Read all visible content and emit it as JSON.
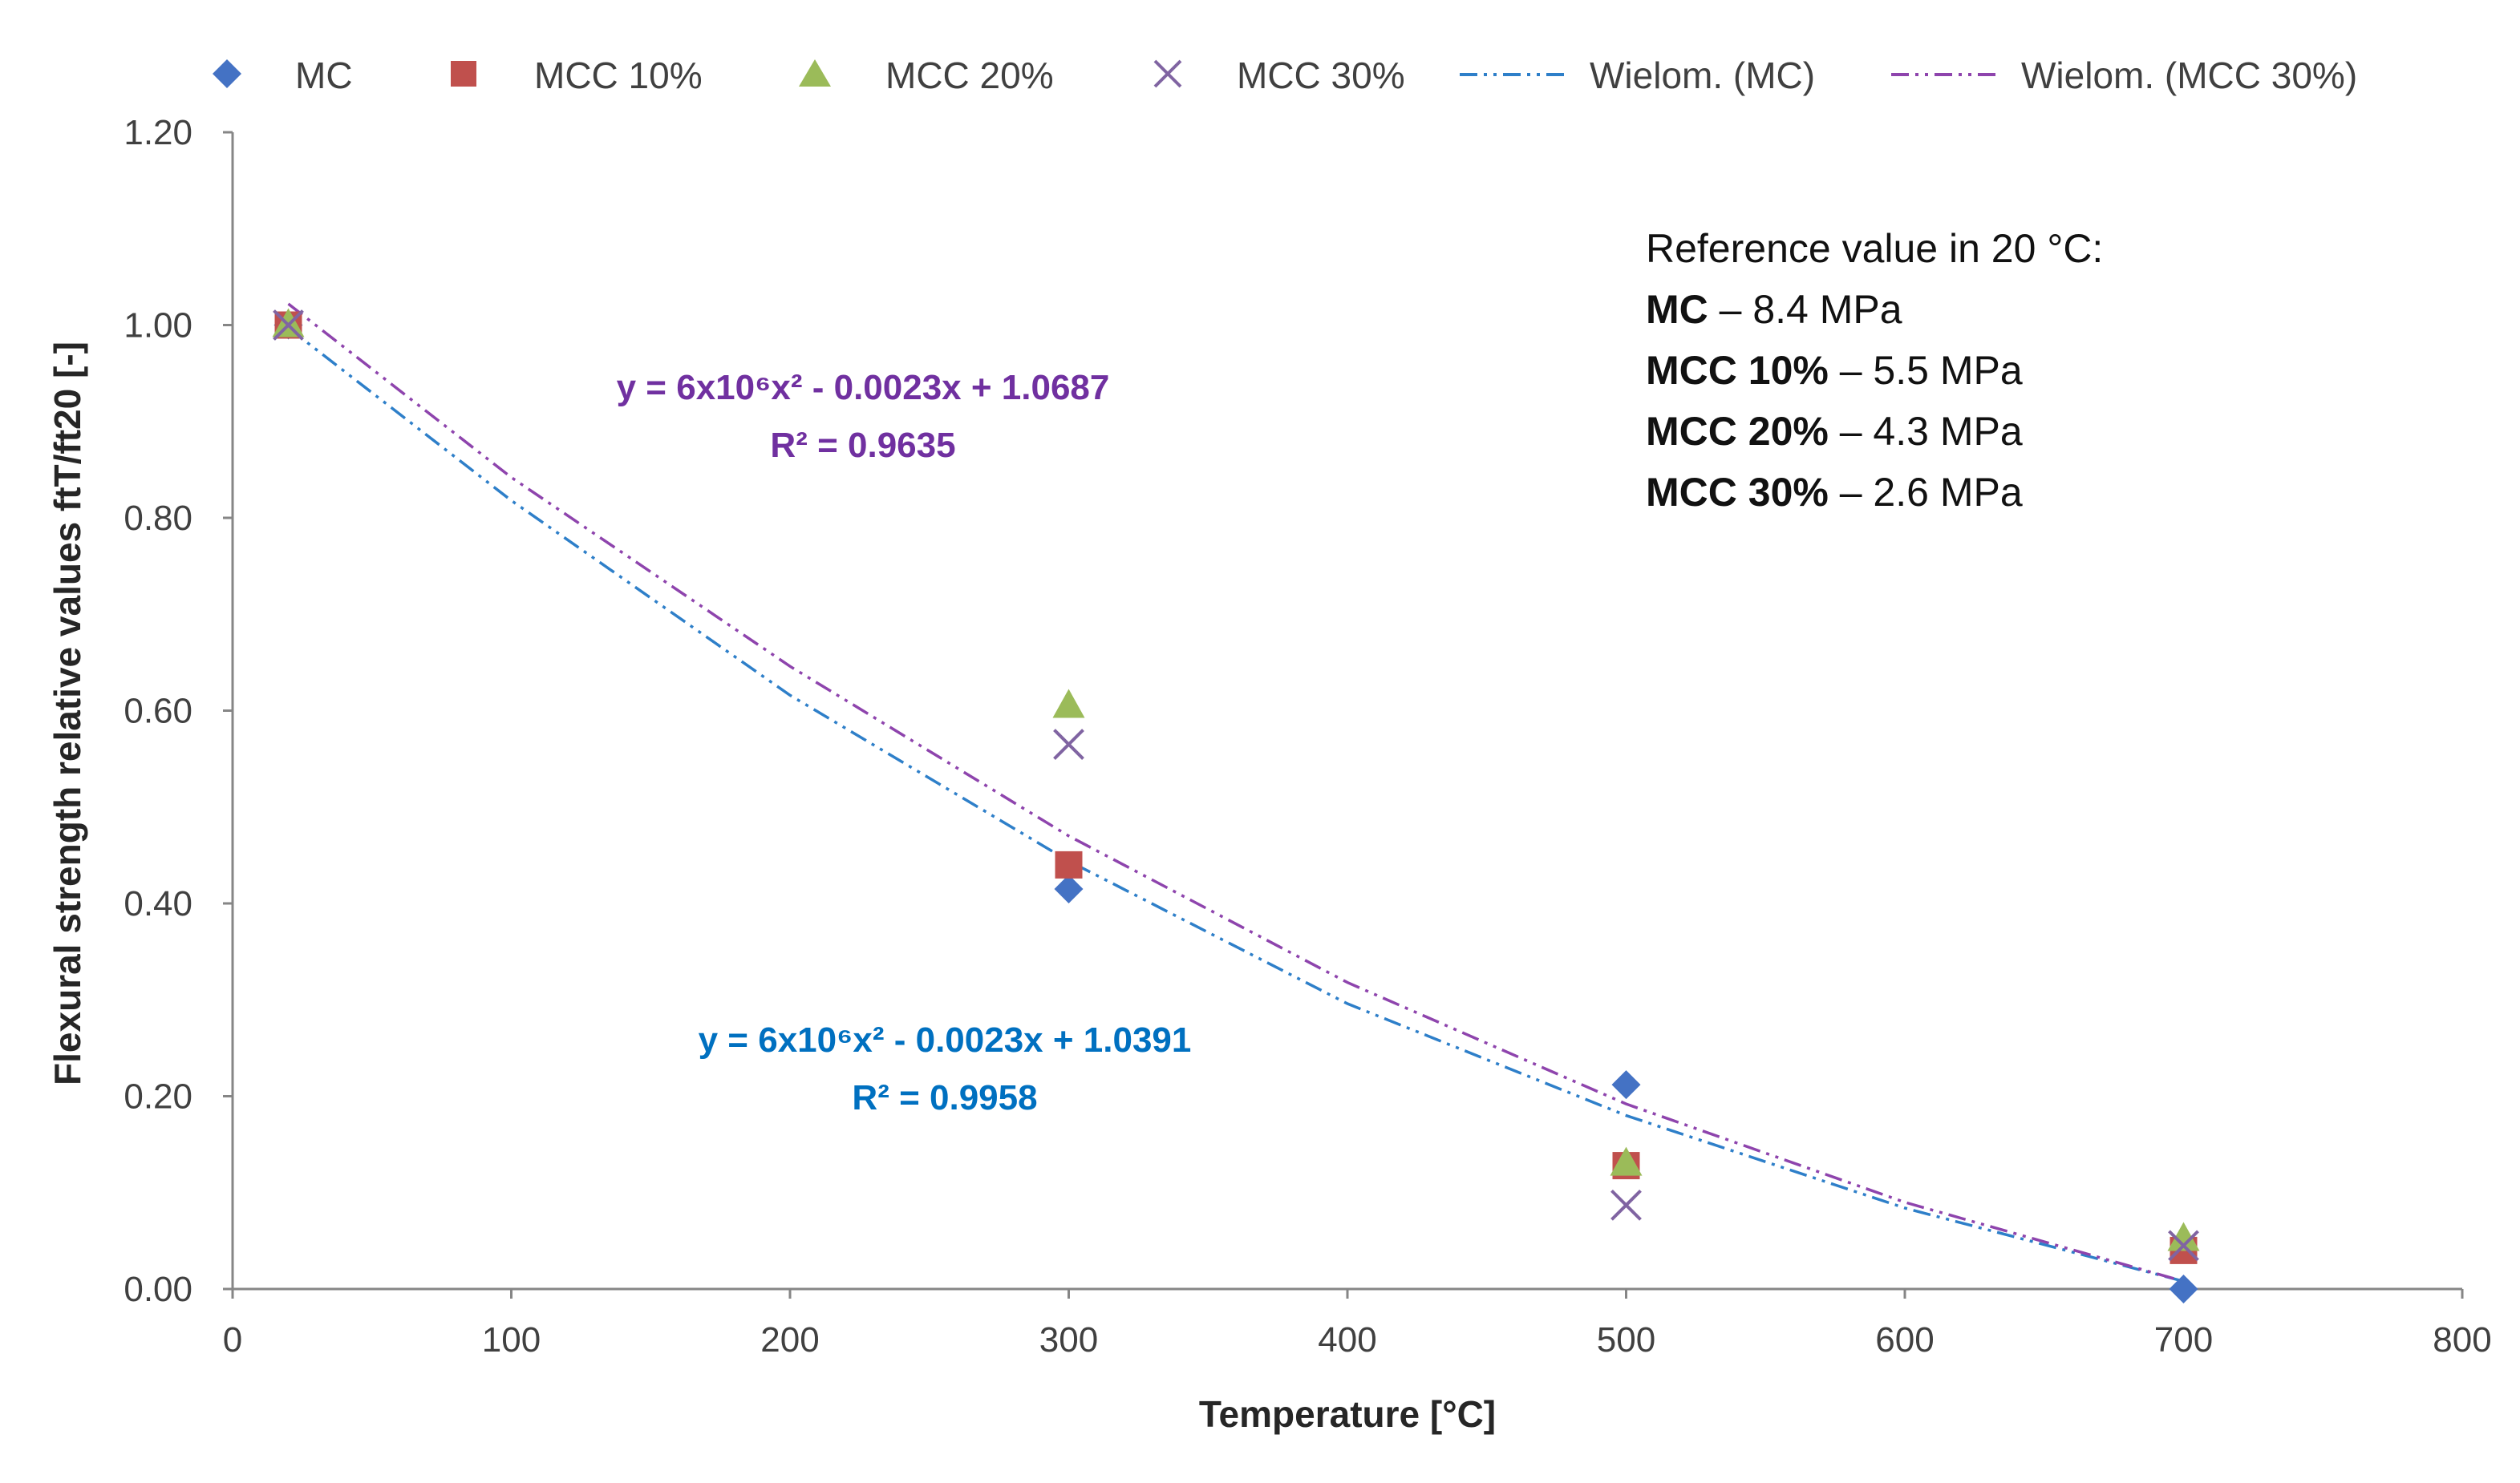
{
  "chart_data": {
    "type": "scatter",
    "xlabel": "Temperature [°C]",
    "ylabel": "Flexural strength relative values ftT/ft20 [-]",
    "xlim": [
      0,
      800
    ],
    "ylim": [
      0,
      1.2
    ],
    "x_ticks": [
      "0",
      "100",
      "200",
      "300",
      "400",
      "500",
      "600",
      "700",
      "800"
    ],
    "y_ticks": [
      "0.00",
      "0.20",
      "0.40",
      "0.60",
      "0.80",
      "1.00",
      "1.20"
    ],
    "grid": false,
    "legend_position": "top",
    "series": [
      {
        "name": "MC",
        "marker": "diamond",
        "color": "#4472C4",
        "x": [
          20,
          300,
          500,
          700
        ],
        "y": [
          1.0,
          0.415,
          0.212,
          0.0
        ]
      },
      {
        "name": "MCC 10%",
        "marker": "square",
        "color": "#C0504D",
        "x": [
          20,
          300,
          500,
          700
        ],
        "y": [
          1.0,
          0.44,
          0.128,
          0.04
        ]
      },
      {
        "name": "MCC 20%",
        "marker": "triangle",
        "color": "#9BBB59",
        "x": [
          20,
          300,
          500,
          700
        ],
        "y": [
          1.0,
          0.605,
          0.13,
          0.052
        ]
      },
      {
        "name": "MCC 30%",
        "marker": "x",
        "color": "#8064A2",
        "x": [
          20,
          300,
          500,
          700
        ],
        "y": [
          1.0,
          0.565,
          0.087,
          0.045
        ]
      }
    ],
    "trendlines": [
      {
        "name": "Wielom. (MC)",
        "color": "#2E7FC9",
        "style": "dash-dot-dot",
        "x": [
          20,
          100,
          200,
          300,
          400,
          500,
          600,
          700
        ],
        "y": [
          0.997,
          0.818,
          0.616,
          0.444,
          0.296,
          0.18,
          0.084,
          0.008
        ]
      },
      {
        "name": "Wielom. (MCC 30%)",
        "color": "#8E44AD",
        "style": "dash-dot-dot",
        "x": [
          20,
          100,
          200,
          300,
          400,
          500,
          600,
          700
        ],
        "y": [
          1.022,
          0.842,
          0.646,
          0.47,
          0.318,
          0.192,
          0.09,
          0.008
        ]
      }
    ],
    "annotations": {
      "eq_mcc30": {
        "line1": "y = 6x10⁶x² - 0.0023x + 1.0687",
        "line2": "R² = 0.9635",
        "color": "#7030A0"
      },
      "eq_mc": {
        "line1": "y = 6x10⁶x² - 0.0023x + 1.0391",
        "line2": "R² = 0.9958",
        "color": "#0070C0"
      }
    },
    "reference": {
      "title": "Reference value in 20 °C:",
      "items": [
        {
          "label": "MC",
          "value": " – 8.4 MPa"
        },
        {
          "label": "MCC 10%",
          "value": " – 5.5 MPa"
        },
        {
          "label": "MCC 20%",
          "value": " – 4.3 MPa"
        },
        {
          "label": "MCC 30%",
          "value": " – 2.6 MPa"
        }
      ]
    }
  }
}
